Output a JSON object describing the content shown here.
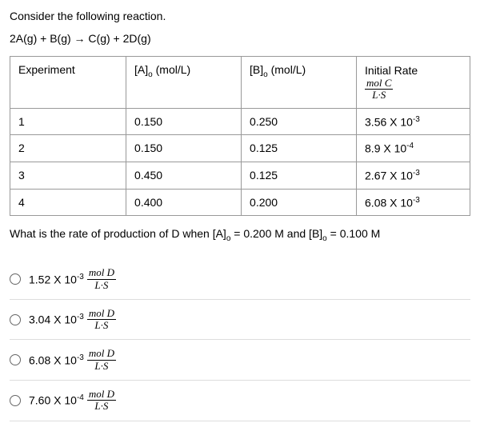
{
  "intro": "Consider the following reaction.",
  "equation": "2A(g) + B(g) → C(g) + 2D(g)",
  "table": {
    "headers": {
      "col1": "Experiment",
      "col2_pre": "[A]",
      "col2_sub": "o",
      "col2_post": " (mol/L)",
      "col3_pre": "[B]",
      "col3_sub": "o",
      "col3_post": "  (mol/L)",
      "col4_title": "Initial Rate",
      "col4_num": "mol C",
      "col4_den": "L·S"
    },
    "rows": [
      {
        "exp": "1",
        "a": "0.150",
        "b": "0.250",
        "rate_base": "3.56 X 10",
        "rate_exp": "-3"
      },
      {
        "exp": "2",
        "a": "0.150",
        "b": "0.125",
        "rate_base": "8.9 X 10",
        "rate_exp": "-4"
      },
      {
        "exp": "3",
        "a": "0.450",
        "b": "0.125",
        "rate_base": "2.67 X 10",
        "rate_exp": "-3"
      },
      {
        "exp": "4",
        "a": "0.400",
        "b": "0.200",
        "rate_base": "6.08 X 10",
        "rate_exp": "-3"
      }
    ]
  },
  "question_pre": "What is the rate of production of D when [A]",
  "question_sub1": "o",
  "question_mid": " = 0.200 M   and   [B]",
  "question_sub2": "o",
  "question_post": " = 0.100 M",
  "options": [
    {
      "base": "1.52 X 10",
      "exp": "-3",
      "num": "mol D",
      "den": "L·S"
    },
    {
      "base": "3.04 X 10",
      "exp": "-3",
      "num": "mol D",
      "den": "L·S"
    },
    {
      "base": "6.08 X 10",
      "exp": "-3",
      "num": "mol D",
      "den": "L·S"
    },
    {
      "base": "7.60 X 10",
      "exp": "-4",
      "num": "mol D",
      "den": "L·S"
    }
  ]
}
